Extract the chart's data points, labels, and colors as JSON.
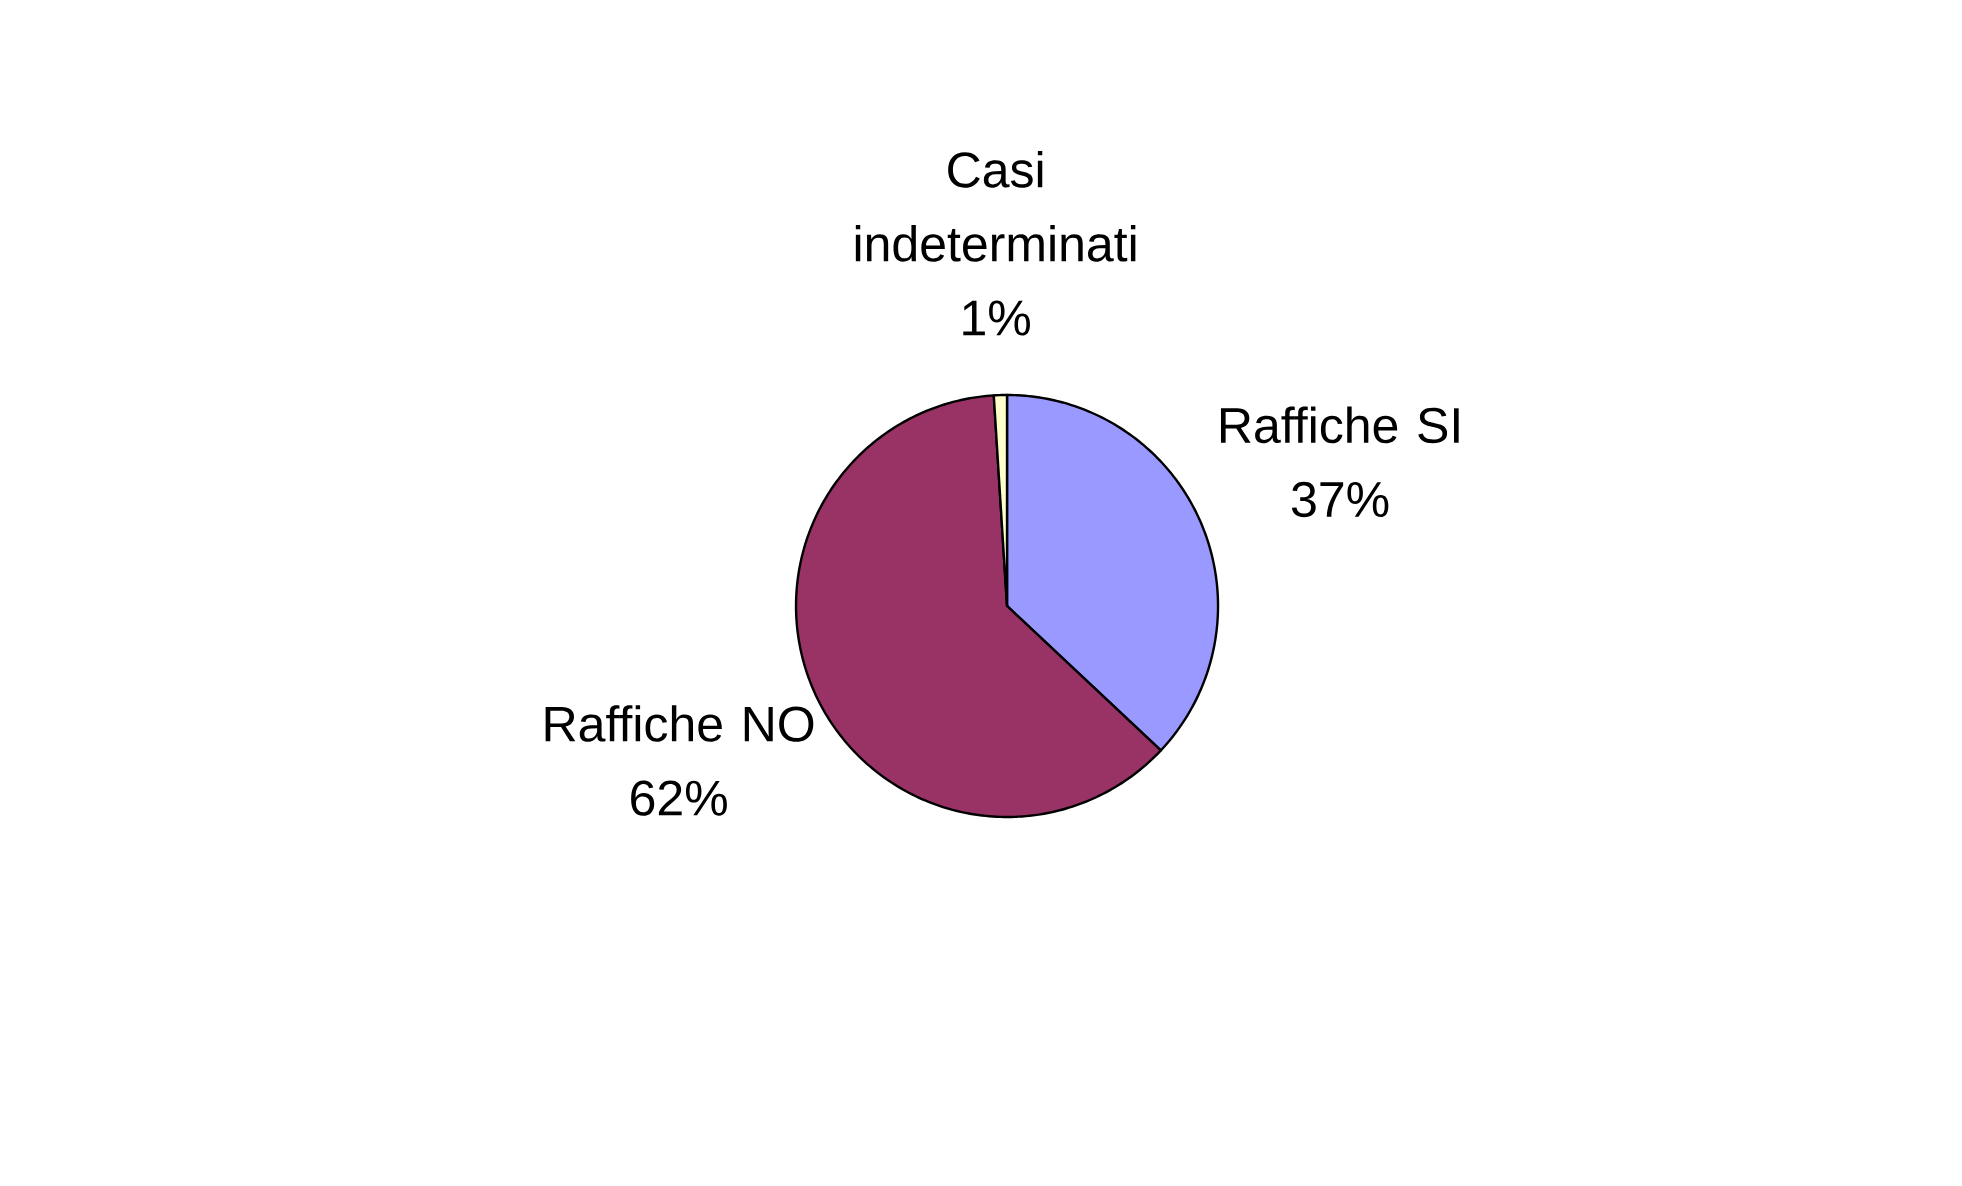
{
  "chart_data": {
    "type": "pie",
    "categories": [
      "Raffiche SI",
      "Raffiche NO",
      "Casi indeterminati"
    ],
    "values": [
      37,
      62,
      1
    ],
    "value_labels": [
      "37%",
      "62%",
      "1%"
    ],
    "colors": [
      "#9999ff",
      "#993366",
      "#ffffcc"
    ]
  }
}
